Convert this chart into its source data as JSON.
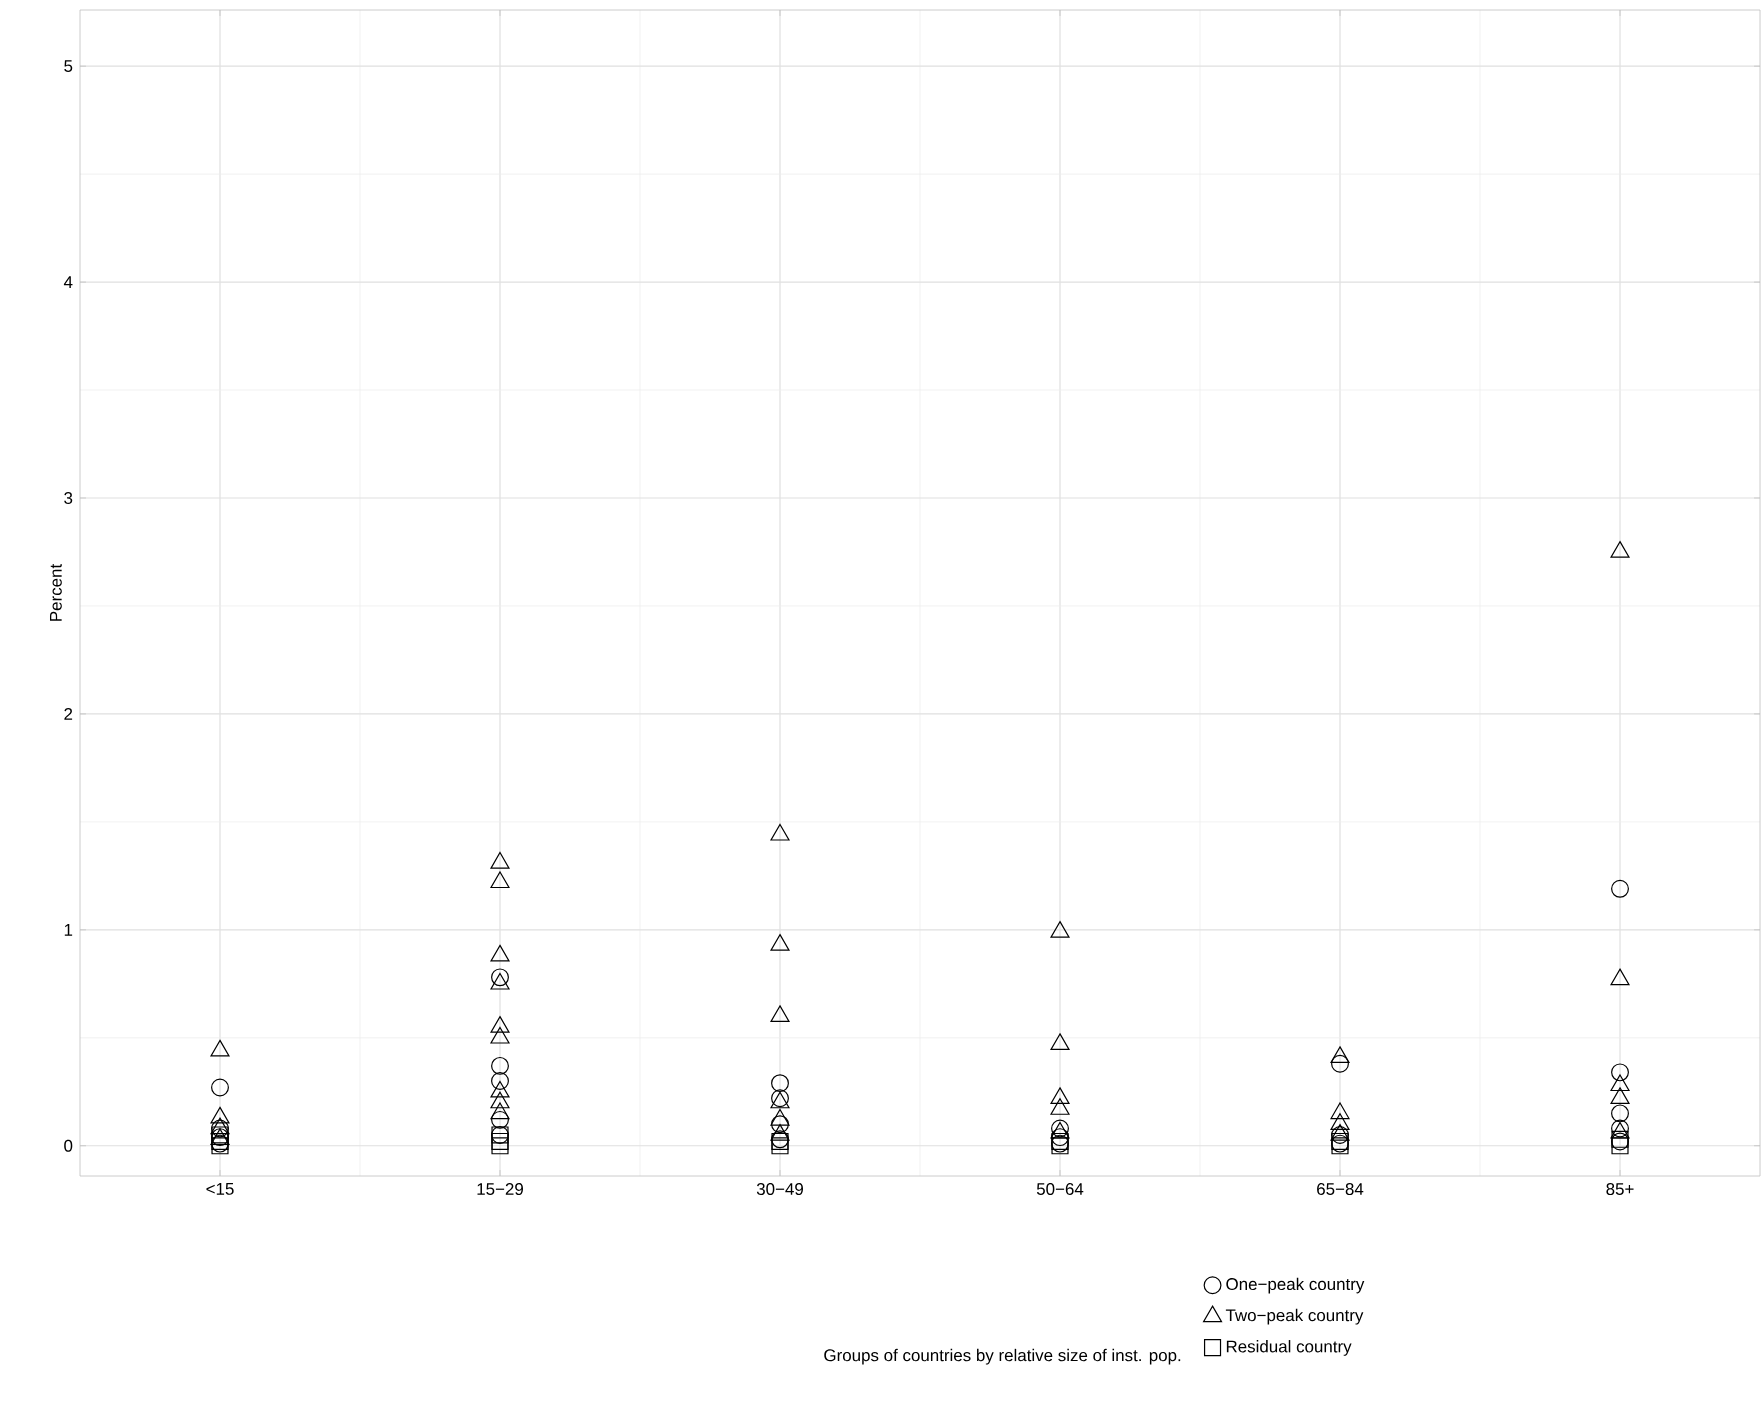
{
  "chart_data": {
    "type": "scatter",
    "ylabel": "Percent",
    "legend_title": "Groups of countries by relative size of inst. pop.",
    "categories": [
      "<15",
      "15−29",
      "30−49",
      "50−64",
      "65−84",
      "85+"
    ],
    "ylim": [
      -0.14,
      5.26
    ],
    "yticks": [
      0,
      1,
      2,
      3,
      4,
      5
    ],
    "grid": true,
    "legend": "bottom",
    "series": [
      {
        "name": "One−peak country",
        "color": "#000000",
        "marker": "circle",
        "x": [
          "<15",
          "<15",
          "<15",
          "<15",
          "15−29",
          "15−29",
          "15−29",
          "15−29",
          "15−29",
          "30−49",
          "30−49",
          "30−49",
          "30−49",
          "50−64",
          "50−64",
          "50−64",
          "65−84",
          "65−84",
          "65−84",
          "85+",
          "85+",
          "85+",
          "85+",
          "85+"
        ],
        "values": [
          0.27,
          0.08,
          0.04,
          0.01,
          0.78,
          0.37,
          0.3,
          0.12,
          0.05,
          0.29,
          0.22,
          0.1,
          0.03,
          0.08,
          0.04,
          0.01,
          0.38,
          0.05,
          0.01,
          1.19,
          0.34,
          0.15,
          0.08,
          0.02
        ]
      },
      {
        "name": "Two−peak country",
        "color": "#000000",
        "marker": "triangle",
        "x": [
          "<15",
          "<15",
          "<15",
          "<15",
          "15−29",
          "15−29",
          "15−29",
          "15−29",
          "15−29",
          "15−29",
          "15−29",
          "15−29",
          "15−29",
          "30−49",
          "30−49",
          "30−49",
          "30−49",
          "30−49",
          "30−49",
          "50−64",
          "50−64",
          "50−64",
          "50−64",
          "50−64",
          "65−84",
          "65−84",
          "65−84",
          "65−84",
          "85+",
          "85+",
          "85+",
          "85+",
          "85+"
        ],
        "values": [
          0.44,
          0.13,
          0.08,
          0.03,
          1.31,
          1.22,
          0.88,
          0.75,
          0.55,
          0.5,
          0.25,
          0.2,
          0.15,
          1.44,
          0.93,
          0.6,
          0.2,
          0.12,
          0.05,
          0.99,
          0.47,
          0.22,
          0.17,
          0.06,
          0.41,
          0.15,
          0.1,
          0.05,
          2.75,
          0.77,
          0.28,
          0.22,
          0.06
        ]
      },
      {
        "name": "Residual country",
        "color": "#000000",
        "marker": "square",
        "x": [
          "<15",
          "<15",
          "<15",
          "15−29",
          "15−29",
          "15−29",
          "30−49",
          "30−49",
          "50−64",
          "50−64",
          "65−84",
          "65−84",
          "85+",
          "85+"
        ],
        "values": [
          0.05,
          0.02,
          0.0,
          0.05,
          0.02,
          0.0,
          0.02,
          0.0,
          0.02,
          0.0,
          0.02,
          0.0,
          0.03,
          0.0
        ]
      }
    ]
  }
}
